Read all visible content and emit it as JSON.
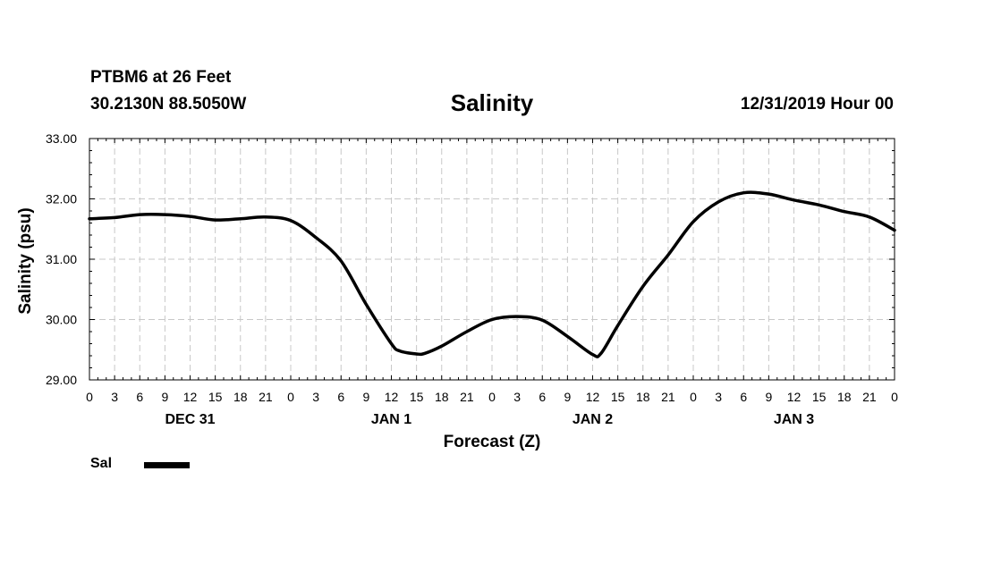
{
  "header": {
    "station": "PTBM6 at 26 Feet",
    "coords": "30.2130N 88.5050W",
    "title": "Salinity",
    "issued": "12/31/2019 Hour 00"
  },
  "chart_data": {
    "type": "line",
    "title": "Salinity",
    "xlabel": "Forecast (Z)",
    "ylabel": "Salinity (psu)",
    "ylim": [
      29.0,
      33.0
    ],
    "y_ticks": [
      "29.00",
      "30.00",
      "31.00",
      "32.00",
      "33.00"
    ],
    "xlim_hours": [
      0,
      96
    ],
    "x_tick_labels": [
      "0",
      "3",
      "6",
      "9",
      "12",
      "15",
      "18",
      "21",
      "0",
      "3",
      "6",
      "9",
      "12",
      "15",
      "18",
      "21",
      "0",
      "3",
      "6",
      "9",
      "12",
      "15",
      "18",
      "21",
      "0",
      "3",
      "6",
      "9",
      "12",
      "15",
      "18",
      "21",
      "0"
    ],
    "day_labels": [
      {
        "label": "DEC 31",
        "hour": 12
      },
      {
        "label": "JAN 1",
        "hour": 36
      },
      {
        "label": "JAN 2",
        "hour": 60
      },
      {
        "label": "JAN 3",
        "hour": 84
      }
    ],
    "grid": true,
    "legend_position": "bottom-left",
    "series": [
      {
        "name": "Sal",
        "color": "#000000",
        "x": [
          0,
          3,
          6,
          9,
          12,
          15,
          18,
          21,
          24,
          27,
          30,
          33,
          36,
          37,
          39,
          40,
          42,
          45,
          48,
          51,
          54,
          57,
          60,
          61,
          63,
          66,
          69,
          72,
          75,
          78,
          81,
          84,
          87,
          90,
          93,
          96
        ],
        "y": [
          31.67,
          31.69,
          31.74,
          31.74,
          31.71,
          31.65,
          31.67,
          31.7,
          31.64,
          31.36,
          30.97,
          30.25,
          29.6,
          29.48,
          29.43,
          29.44,
          29.56,
          29.8,
          30.0,
          30.05,
          29.99,
          29.72,
          29.42,
          29.44,
          29.9,
          30.55,
          31.07,
          31.62,
          31.95,
          32.1,
          32.08,
          31.98,
          31.9,
          31.79,
          31.7,
          31.48
        ]
      }
    ]
  },
  "legend": {
    "label": "Sal"
  }
}
